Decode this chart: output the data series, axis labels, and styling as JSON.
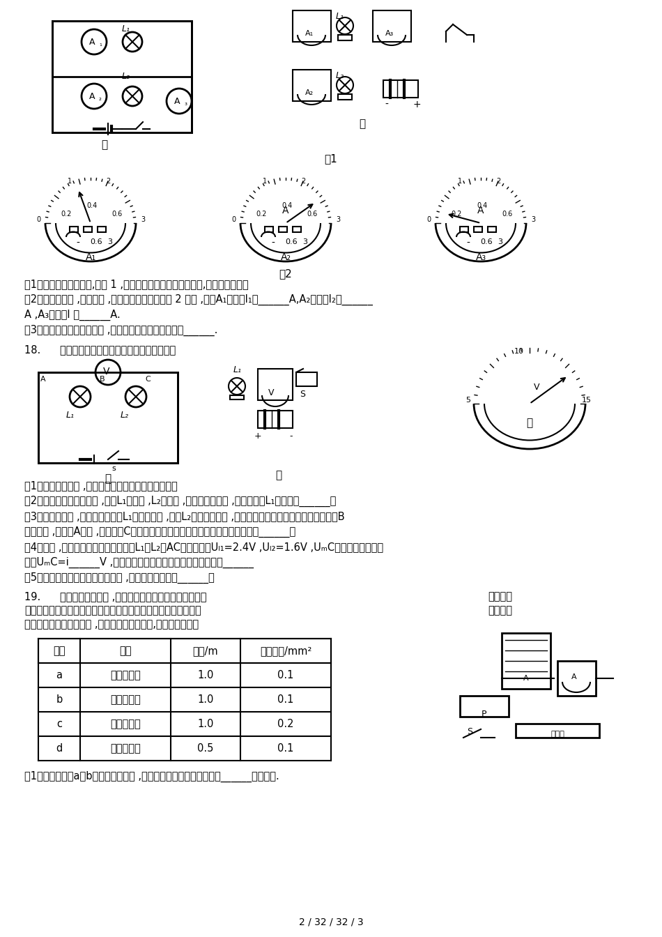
{
  "title": "",
  "background_color": "#ffffff",
  "page_number_text": "2 / 32 / 32 / 3",
  "fig1_label": "图1",
  "fig2_label": "图2",
  "jia_label": "甲",
  "yi_label": "乙",
  "bing_label": "丙",
  "ammeter_labels": [
    "A₁",
    "A₂",
    "A₃"
  ],
  "ammeter_readings": [
    "0.6",
    "3",
    "0.6",
    "3",
    "0.6",
    "3"
  ],
  "q17_text_lines": [
    "(1)以笔画线代替导线,如图 1 ,按电路甲把实物图乙连接起来,导线不许交叉。",
    "(2)连完电路后 ,闭合开关 ,三个电流表的示数如图 2 所示 ,那么A₁的示数I₁是______A,A₂的示数I₂是______",
    "A ,A₃的示数I 是______A.",
    "(3)由上述三个电流的数值 ,可近似得出电流关系式为：______."
  ],
  "q18_header": "18.      小兰同学对串联电路电压规律进行了探究。",
  "q18_text_lines": [
    "（1）根据电路图甲 ,用笔代替导线连接实物电路图乙。",
    "（2）如图甲所示闭合开关 ,发现L₁不发光 ,L₂比拟亮 ,电压表示数为零 ,那么小灯泡L₁的故障是______；",
    "（3）排除故障后 ,小兰正确测出了L₁两端的电压 ,在测L₂两端的电压时 ,小兰打算采用以下方法：电压表所接的B",
    "接点不动 ,只断开A接点 ,并改接到C接点上。此操作可能会导致电压表出现的现象是______。",
    "（4）最后 ,小兰按照正确的方法测出了L₁、L₂、AC之间的电压Uₗ₁=2.4V ,Uₗ₂=1.6V ,UₘC的示数如图丙所示",
    "读出UₘC=i______V ,并得出了实验的最终结论。实验结论为：______",
    "（5）此实验依然存在着一定的缺陷 ,你的改良方法是：______。"
  ],
  "q19_header": "19.      学习了电学知识后 ,小明对影响电阻大小的某些因素进                              行了探究",
  "q19_text1": "，他从实验室中选出符合要求的学生电源、滑动变阻器、电流表、                              开关、导",
  "q19_text2": "线假设干以及几种电阻丝 ,电阻丝的参数如下表,请答复以下问题",
  "table_headers": [
    "编号",
    "材料",
    "长度/m",
    "横截面积/mm²"
  ],
  "table_rows": [
    [
      "a",
      "镍铬合金丝",
      "1.0",
      "0.1"
    ],
    [
      "b",
      "锰铜合金丝",
      "1.0",
      "0.1"
    ],
    [
      "c",
      "镍铬合金丝",
      "1.0",
      "0.2"
    ],
    [
      "d",
      "镍铬合金丝",
      "0.5",
      "0.1"
    ]
  ],
  "q19_sub1": "（1）选用电阻丝a、b分别接入电路中 ,是为了探究电阻大小跟导体的______是否有关."
}
